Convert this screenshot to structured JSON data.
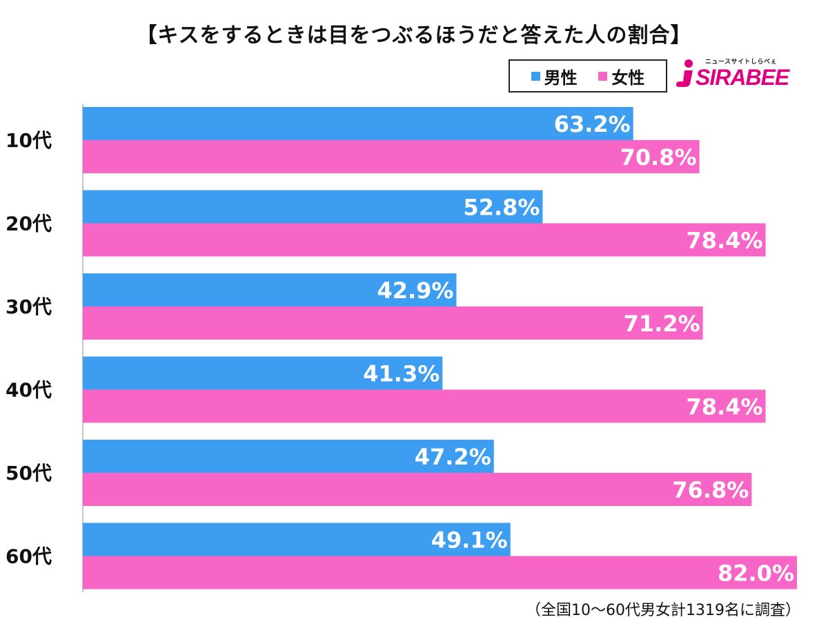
{
  "title": "【キスをするときは目をつぶるほうだと答えた人の割合】",
  "legend": {
    "male": "男性",
    "female": "女性"
  },
  "logo": {
    "text": "SIRABEE",
    "tagline": "ニュースサイトしらべぇ"
  },
  "note": "（全国10～60代男女計1319名に調査）",
  "colors": {
    "male": "#3d9df0",
    "female": "#f766c7"
  },
  "chart_data": {
    "type": "bar",
    "orientation": "horizontal",
    "categories": [
      "10代",
      "20代",
      "30代",
      "40代",
      "50代",
      "60代"
    ],
    "series": [
      {
        "name": "男性",
        "values": [
          63.2,
          52.8,
          42.9,
          41.3,
          47.2,
          49.1
        ],
        "labels": [
          "63.2%",
          "52.8%",
          "42.9%",
          "41.3%",
          "47.2%",
          "49.1%"
        ]
      },
      {
        "name": "女性",
        "values": [
          70.8,
          78.4,
          71.2,
          78.4,
          76.8,
          82.0
        ],
        "labels": [
          "70.8%",
          "78.4%",
          "71.2%",
          "78.4%",
          "76.8%",
          "82.0%"
        ]
      }
    ],
    "xlim": [
      0,
      82
    ],
    "grid": false,
    "legend_position": "top-right"
  }
}
